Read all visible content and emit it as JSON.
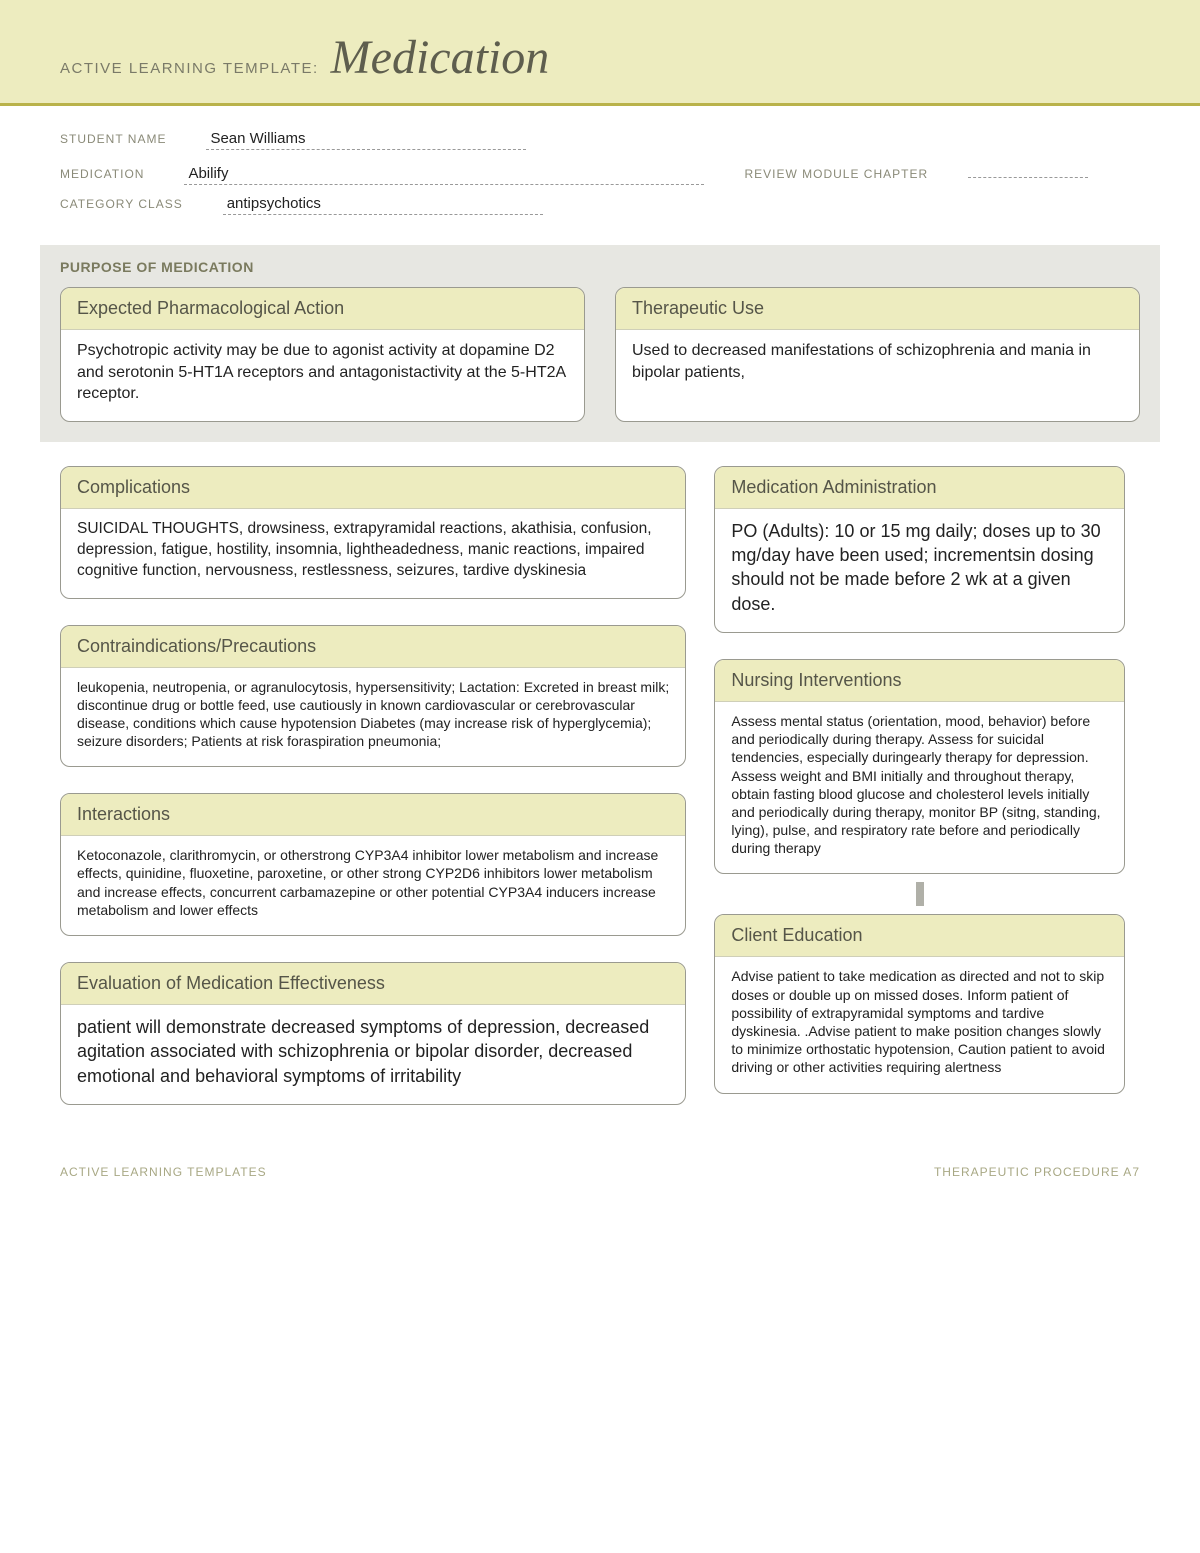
{
  "banner": {
    "prefix": "ACTIVE LEARNING TEMPLATE:",
    "title": "Medication"
  },
  "form": {
    "student_label": "STUDENT NAME",
    "student_value": "Sean Williams",
    "medication_label": "MEDICATION",
    "medication_value": "Abilify",
    "review_label": "REVIEW MODULE CHAPTER",
    "review_value": "",
    "category_label": "CATEGORY CLASS",
    "category_value": "antipsychotics"
  },
  "purpose": {
    "section_title": "PURPOSE OF MEDICATION",
    "pharm": {
      "title": "Expected Pharmacological Action",
      "body": "Psychotropic activity may be due to agonist activity at dopamine D2  and serotonin 5-HT1A  receptors and antagonistactivity at the 5-HT2A  receptor."
    },
    "therapeutic": {
      "title": "Therapeutic Use",
      "body": "Used to decreased manifestations of schizophrenia and mania in bipolar patients,"
    }
  },
  "left": {
    "complications": {
      "title": "Complications",
      "body": "SUICIDAL THOUGHTS, drowsiness, extrapyramidal reactions, akathisia, confusion, depression, fatigue, hostility, insomnia, lightheadedness, manic reactions, impaired cognitive function, nervousness, restlessness, seizures, tardive dyskinesia"
    },
    "contra": {
      "title": "Contraindications/Precautions",
      "body": " leukopenia, neutropenia, or agranulocytosis, hypersensitivity; Lactation: Excreted in breast milk; discontinue drug or bottle feed, use cautiously in known cardiovascular or cerebrovascular disease, conditions which cause hypotension  Diabetes (may increase risk of hyperglycemia); seizure disorders; Patients at risk foraspiration pneumonia;"
    },
    "interactions": {
      "title": "Interactions",
      "body": "Ketoconazole, clarithromycin, or otherstrong CYP3A4 inhibitor lower metabolism and increase effects, quinidine, fluoxetine, paroxetine, or other strong CYP2D6 inhibitors lower metabolism and increase effects, concurrent carbamazepine or other potential CYP3A4 inducers increase metabolism and lower effects"
    },
    "evaluation": {
      "title": "Evaluation of Medication Effectiveness",
      "body": "patient will demonstrate  decreased symptoms of depression, decreased agitation associated with schizophrenia or bipolar disorder, decreased emotional and behavioral symptoms of irritability"
    }
  },
  "right": {
    "admin": {
      "title": "Medication Administration",
      "body": "PO (Adults): 10 or 15 mg daily; doses up to 30 mg/day have been used; incrementsin dosing should not be made before 2 wk at a given dose."
    },
    "nursing": {
      "title": "Nursing Interventions",
      "body": "Assess mental status (orientation, mood, behavior) before and periodically during therapy. Assess for suicidal tendencies, especially duringearly therapy for depression. Assess weight and BMI initially and throughout therapy, obtain fasting blood glucose and cholesterol levels initially and periodically during therapy, monitor BP (sitng, standing, lying), pulse, and respiratory rate before and periodically during therapy"
    },
    "education": {
      "title": "Client Education",
      "body": "Advise patient to take medication as directed and not to skip doses or double up on missed doses. Inform patient of possibility of extrapyramidal symptoms and tardive dyskinesia.  .Advise patient to make position changes slowly to minimize orthostatic hypotension, Caution patient to avoid driving or other activities requiring alertness"
    }
  },
  "footer": {
    "left": "ACTIVE LEARNING TEMPLATES",
    "right": "THERAPEUTIC PROCEDURE   A7"
  },
  "colors": {
    "banner_bg": "#edecbf",
    "accent_line": "#b9b24a",
    "section_bg": "#e7e7e2",
    "card_border": "#9a9a90"
  }
}
